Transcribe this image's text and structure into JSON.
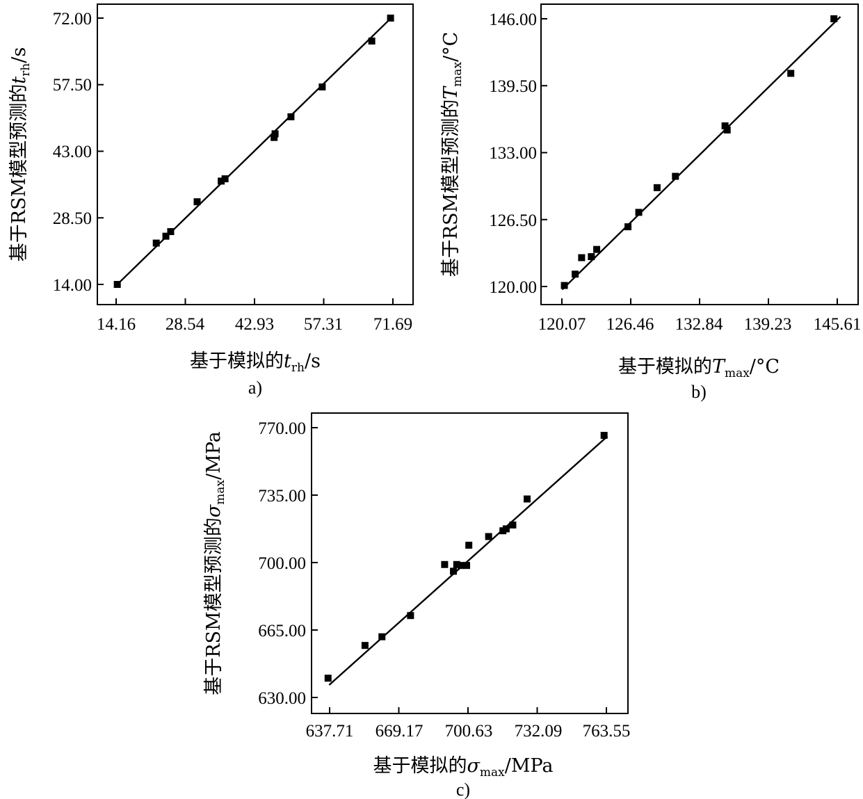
{
  "chart_data": [
    {
      "type": "scatter",
      "caption": "a)",
      "xlabel": {
        "prefix": "基于模拟的",
        "symbol": "t",
        "sub": "rh",
        "unit": "/s"
      },
      "ylabel": {
        "prefix": "基于RSM模型预测的",
        "symbol": "t",
        "sub": "rh",
        "unit": "/s"
      },
      "xticks": [
        "14.16",
        "28.54",
        "42.93",
        "57.31",
        "71.69"
      ],
      "yticks": [
        "14.00",
        "28.50",
        "43.00",
        "57.50",
        "72.00"
      ],
      "xlim": [
        14.16,
        71.69
      ],
      "ylim": [
        14.0,
        72.0
      ],
      "points": [
        [
          14.4,
          14.0
        ],
        [
          22.5,
          23.0
        ],
        [
          24.5,
          24.5
        ],
        [
          25.5,
          25.5
        ],
        [
          31.0,
          32.0
        ],
        [
          36.0,
          36.5
        ],
        [
          36.8,
          37.0
        ],
        [
          47.0,
          46.0
        ],
        [
          47.2,
          46.8
        ],
        [
          50.5,
          50.5
        ],
        [
          57.0,
          57.0
        ],
        [
          67.3,
          67.0
        ],
        [
          71.2,
          72.0
        ]
      ],
      "fit_line": [
        [
          14.4,
          14.0
        ],
        [
          71.8,
          72.5
        ]
      ]
    },
    {
      "type": "scatter",
      "caption": "b)",
      "xlabel": {
        "prefix": "基于模拟的",
        "symbol": "T",
        "sub": "max",
        "unit": "/°C"
      },
      "ylabel": {
        "prefix": "基于RSM模型预测的",
        "symbol": "T",
        "sub": "max",
        "unit": "/°C"
      },
      "xticks": [
        "120.07",
        "126.46",
        "132.84",
        "139.23",
        "145.61"
      ],
      "yticks": [
        "120.00",
        "126.50",
        "133.00",
        "139.50",
        "146.00"
      ],
      "xlim": [
        120.07,
        145.61
      ],
      "ylim": [
        120.0,
        146.0
      ],
      "points": [
        [
          120.3,
          120.1
        ],
        [
          121.3,
          121.2
        ],
        [
          121.9,
          122.8
        ],
        [
          122.8,
          122.9
        ],
        [
          123.3,
          123.6
        ],
        [
          126.2,
          125.8
        ],
        [
          127.2,
          127.2
        ],
        [
          128.9,
          129.6
        ],
        [
          130.6,
          130.7
        ],
        [
          135.2,
          135.6
        ],
        [
          135.4,
          135.2
        ],
        [
          141.3,
          140.7
        ],
        [
          145.3,
          146.0
        ]
      ],
      "fit_line": [
        [
          120.1,
          119.7
        ],
        [
          145.9,
          146.2
        ]
      ]
    },
    {
      "type": "scatter",
      "caption": "c)",
      "xlabel": {
        "prefix": "基于模拟的",
        "symbol": "σ",
        "sub": "max",
        "unit": "/MPa"
      },
      "ylabel": {
        "prefix": "基于RSM模型预测的",
        "symbol": "σ",
        "sub": "max",
        "unit": "/MPa"
      },
      "xticks": [
        "637.71",
        "669.17",
        "700.63",
        "732.09",
        "763.55"
      ],
      "yticks": [
        "630.00",
        "665.00",
        "700.00",
        "735.00",
        "770.00"
      ],
      "xlim": [
        637.71,
        763.55
      ],
      "ylim": [
        630.0,
        770.0
      ],
      "points": [
        [
          637.0,
          640.0
        ],
        [
          653.8,
          657.0
        ],
        [
          661.5,
          661.5
        ],
        [
          674.5,
          672.5
        ],
        [
          690.0,
          699.0
        ],
        [
          694.0,
          695.5
        ],
        [
          695.5,
          699.0
        ],
        [
          697.5,
          698.5
        ],
        [
          700.0,
          698.5
        ],
        [
          701.0,
          709.0
        ],
        [
          710.0,
          713.5
        ],
        [
          716.5,
          716.5
        ],
        [
          718.0,
          717.5
        ],
        [
          721.0,
          719.5
        ],
        [
          727.5,
          733.0
        ],
        [
          762.5,
          766.0
        ]
      ],
      "fit_line": [
        [
          637.5,
          636.5
        ],
        [
          764.0,
          765.5
        ]
      ]
    }
  ]
}
